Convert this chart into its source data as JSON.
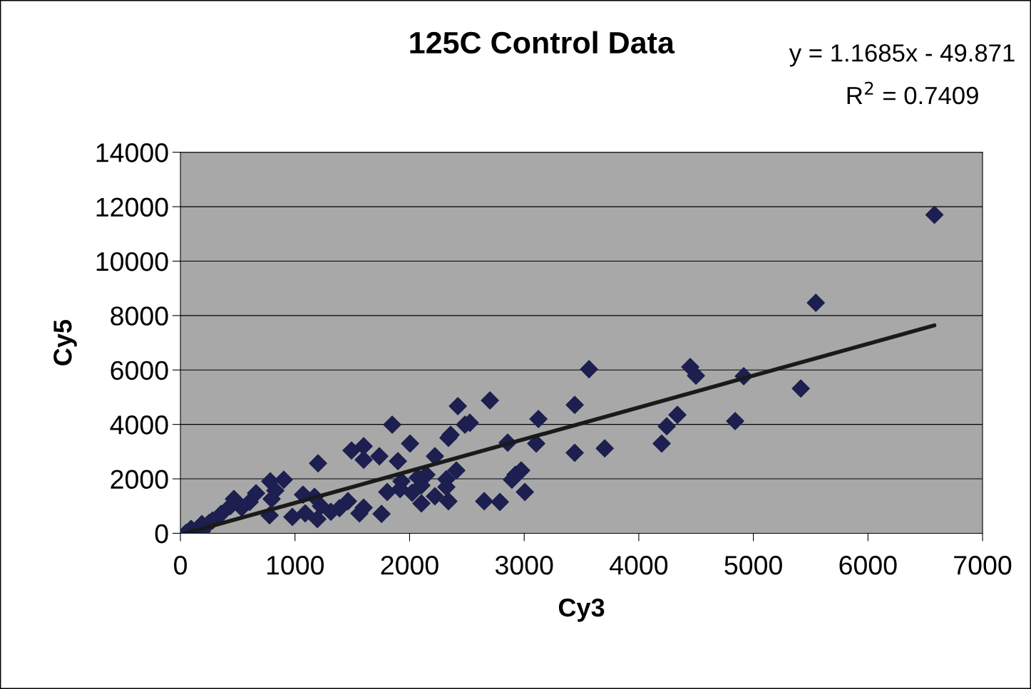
{
  "chart_data": {
    "type": "scatter",
    "title": "125C Control Data",
    "xlabel": "Cy3",
    "ylabel": "Cy5",
    "annotations": [
      "y = 1.1685x - 49.871",
      "R$^{2}$ = 0.7409"
    ],
    "xlim": [
      0,
      7000
    ],
    "xticks": [
      0,
      1000,
      2000,
      3000,
      4000,
      5000,
      6000,
      7000
    ],
    "ylim": [
      0,
      14000
    ],
    "yticks": [
      0,
      2000,
      4000,
      6000,
      8000,
      10000,
      12000,
      14000
    ],
    "grid": "y",
    "legend": false,
    "marker": "diamond",
    "series": [
      {
        "color": "#1c1f4f",
        "x": [
          6580,
          5545,
          5414,
          4916,
          4841,
          4499,
          4449,
          4337,
          4244,
          4200,
          3703,
          3566,
          3441,
          3441,
          3124,
          3105,
          3006,
          2974,
          2924,
          2893,
          2856,
          2788,
          2701,
          2651,
          2526,
          2483,
          2421,
          2408,
          2358,
          2339,
          2339,
          2321,
          2321,
          2221,
          2221,
          2147,
          2103,
          2103,
          2072,
          2022,
          2004,
          1898,
          1929,
          1917,
          1805,
          1848,
          1755,
          1736,
          1599,
          1599,
          1599,
          1562,
          1493,
          1462,
          1388,
          1313,
          1226,
          1201,
          1195,
          1170,
          1089,
          1070,
          977,
          902,
          828,
          784,
          778,
          796,
          660,
          604,
          535,
          467,
          436,
          355,
          280,
          187,
          187,
          93,
          50,
          250
        ],
        "values": [
          11700,
          8470,
          5320,
          5770,
          4120,
          5790,
          6110,
          4350,
          3930,
          3300,
          3120,
          6030,
          4720,
          2960,
          4200,
          3300,
          1520,
          2310,
          2150,
          1970,
          3330,
          1150,
          4880,
          1180,
          4060,
          3990,
          4670,
          2310,
          3620,
          1180,
          3510,
          1700,
          1990,
          2830,
          1360,
          2150,
          1100,
          1760,
          2050,
          1490,
          3300,
          2650,
          1910,
          1620,
          1520,
          3990,
          710,
          2830,
          2700,
          3200,
          940,
          730,
          3040,
          1180,
          920,
          790,
          1000,
          2570,
          520,
          1340,
          730,
          1420,
          600,
          1970,
          1570,
          1910,
          660,
          1260,
          1470,
          1150,
          940,
          1260,
          1000,
          710,
          470,
          340,
          80,
          160,
          20,
          380
        ]
      },
      {
        "type": "line",
        "color": "#1a1a1a",
        "marker": "none",
        "x": [
          44,
          6580
        ],
        "values": [
          0,
          7640
        ]
      }
    ]
  }
}
